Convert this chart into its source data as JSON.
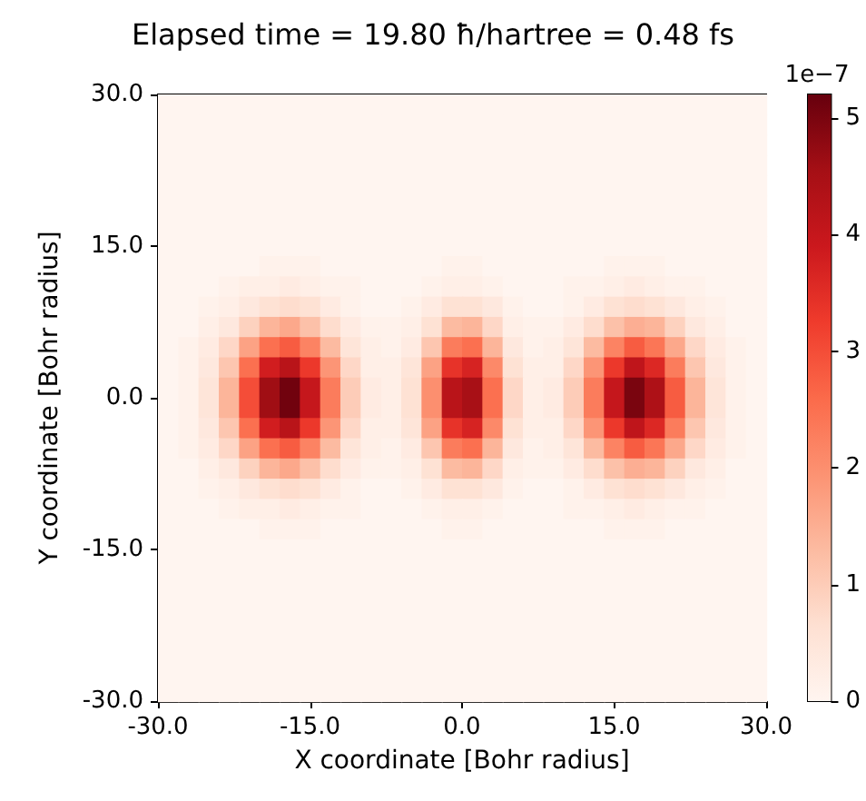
{
  "chart_data": {
    "type": "heatmap",
    "title": "Elapsed time = 19.80 ħ/hartree = 0.48 fs",
    "xlabel": "X coordinate [Bohr radius]",
    "ylabel": "Y coordinate [Bohr radius]",
    "clabel": "1e−7",
    "xlim": [
      -30,
      30
    ],
    "ylim": [
      -30,
      30
    ],
    "xticks": [
      {
        "value": -30,
        "label": "-30.0"
      },
      {
        "value": -15,
        "label": "-15.0"
      },
      {
        "value": 0,
        "label": "0.0"
      },
      {
        "value": 15,
        "label": "15.0"
      },
      {
        "value": 30,
        "label": "30.0"
      }
    ],
    "yticks": [
      {
        "value": -30,
        "label": "-30.0"
      },
      {
        "value": -15,
        "label": "-15.0"
      },
      {
        "value": 0,
        "label": "0.0"
      },
      {
        "value": 15,
        "label": "15.0"
      },
      {
        "value": 30,
        "label": "30.0"
      }
    ],
    "clim": [
      0,
      5.2
    ],
    "cticks": [
      0,
      1,
      2,
      3,
      4,
      5
    ],
    "cells": [
      [
        0,
        0,
        0,
        0,
        0,
        0,
        0,
        0,
        0,
        0,
        0,
        0,
        0,
        0,
        0,
        0,
        0,
        0,
        0,
        0,
        0,
        0,
        0,
        0,
        0,
        0,
        0,
        0,
        0,
        0
      ],
      [
        0,
        0,
        0,
        0,
        0,
        0,
        0,
        0,
        0,
        0,
        0,
        0,
        0,
        0,
        0,
        0,
        0,
        0,
        0,
        0,
        0,
        0,
        0,
        0,
        0,
        0,
        0,
        0,
        0,
        0
      ],
      [
        0,
        0,
        0,
        0,
        0,
        0,
        0,
        0,
        0,
        0,
        0,
        0,
        0,
        0,
        0,
        0,
        0,
        0,
        0,
        0,
        0,
        0,
        0,
        0,
        0,
        0,
        0,
        0,
        0,
        0
      ],
      [
        0,
        0,
        0,
        0,
        0,
        0,
        0,
        0,
        0,
        0,
        0,
        0,
        0,
        0,
        0,
        0,
        0,
        0,
        0,
        0,
        0,
        0,
        0,
        0,
        0,
        0,
        0,
        0,
        0,
        0
      ],
      [
        0,
        0,
        0,
        0,
        0,
        0,
        0,
        0,
        0,
        0,
        0,
        0,
        0,
        0,
        0,
        0,
        0,
        0,
        0,
        0,
        0,
        0,
        0,
        0,
        0,
        0,
        0,
        0,
        0,
        0
      ],
      [
        0,
        0,
        0,
        0,
        0,
        0,
        0,
        0,
        0,
        0,
        0,
        0,
        0,
        0,
        0,
        0,
        0,
        0,
        0,
        0,
        0,
        0,
        0,
        0,
        0,
        0,
        0,
        0,
        0,
        0
      ],
      [
        0,
        0,
        0,
        0,
        0,
        0,
        0,
        0,
        0,
        0,
        0,
        0,
        0,
        0,
        0,
        0,
        0,
        0,
        0,
        0,
        0,
        0,
        0,
        0,
        0,
        0,
        0,
        0,
        0,
        0
      ],
      [
        0,
        0,
        0,
        0,
        0,
        0,
        0,
        0,
        0,
        0,
        0,
        0,
        0,
        0,
        0,
        0,
        0,
        0,
        0,
        0,
        0,
        0,
        0,
        0,
        0,
        0,
        0,
        0,
        0,
        0
      ],
      [
        0,
        0,
        0,
        0,
        0,
        0.1,
        0.1,
        0.1,
        0,
        0,
        0,
        0,
        0,
        0,
        0.1,
        0.1,
        0,
        0,
        0,
        0,
        0,
        0,
        0.1,
        0.1,
        0.1,
        0,
        0,
        0,
        0,
        0
      ],
      [
        0,
        0,
        0,
        0.1,
        0.2,
        0.2,
        0.3,
        0.2,
        0.1,
        0.1,
        0,
        0,
        0,
        0.1,
        0.2,
        0.2,
        0.1,
        0,
        0,
        0,
        0.1,
        0.1,
        0.2,
        0.3,
        0.2,
        0.1,
        0.1,
        0,
        0,
        0
      ],
      [
        0,
        0,
        0.1,
        0.2,
        0.4,
        0.6,
        0.7,
        0.6,
        0.3,
        0.1,
        0,
        0,
        0.1,
        0.3,
        0.6,
        0.6,
        0.4,
        0.1,
        0,
        0,
        0.1,
        0.3,
        0.6,
        0.7,
        0.6,
        0.4,
        0.2,
        0.1,
        0,
        0
      ],
      [
        0,
        0,
        0.2,
        0.4,
        0.9,
        1.4,
        1.6,
        1.2,
        0.7,
        0.3,
        0.1,
        0.1,
        0.2,
        0.6,
        1.3,
        1.4,
        0.8,
        0.2,
        0.1,
        0.1,
        0.3,
        0.7,
        1.2,
        1.5,
        1.4,
        0.9,
        0.4,
        0.2,
        0,
        0
      ],
      [
        0,
        0.1,
        0.3,
        0.8,
        1.7,
        2.5,
        2.8,
        2.2,
        1.3,
        0.5,
        0.2,
        0.1,
        0.3,
        1.1,
        2.3,
        2.5,
        1.4,
        0.4,
        0.1,
        0.2,
        0.5,
        1.3,
        2.2,
        2.8,
        2.4,
        1.6,
        0.8,
        0.3,
        0.1,
        0
      ],
      [
        0,
        0.1,
        0.4,
        1.1,
        2.5,
        3.8,
        4.2,
        3.3,
        1.9,
        0.8,
        0.2,
        0.2,
        0.5,
        1.7,
        3.4,
        3.7,
        2.1,
        0.6,
        0.2,
        0.2,
        0.8,
        1.9,
        3.3,
        4.1,
        3.6,
        2.3,
        1.1,
        0.4,
        0.1,
        0
      ],
      [
        0,
        0.1,
        0.5,
        1.4,
        3.0,
        4.6,
        5.1,
        4.0,
        2.3,
        1.0,
        0.3,
        0.2,
        0.6,
        2.0,
        4.2,
        4.5,
        2.5,
        0.8,
        0.2,
        0.3,
        1.0,
        2.3,
        4.0,
        5.0,
        4.4,
        2.8,
        1.4,
        0.5,
        0.1,
        0
      ],
      [
        0,
        0.1,
        0.5,
        1.4,
        3.0,
        4.6,
        5.1,
        4.0,
        2.3,
        1.0,
        0.3,
        0.2,
        0.6,
        2.0,
        4.2,
        4.5,
        2.5,
        0.8,
        0.2,
        0.3,
        1.0,
        2.3,
        4.0,
        5.0,
        4.4,
        2.8,
        1.4,
        0.5,
        0.1,
        0
      ],
      [
        0,
        0.1,
        0.4,
        1.1,
        2.5,
        3.8,
        4.2,
        3.3,
        1.9,
        0.8,
        0.2,
        0.2,
        0.5,
        1.7,
        3.4,
        3.7,
        2.1,
        0.6,
        0.2,
        0.2,
        0.8,
        1.9,
        3.3,
        4.1,
        3.6,
        2.3,
        1.1,
        0.4,
        0.1,
        0
      ],
      [
        0,
        0.1,
        0.3,
        0.8,
        1.7,
        2.5,
        2.8,
        2.2,
        1.3,
        0.5,
        0.2,
        0.1,
        0.3,
        1.1,
        2.3,
        2.5,
        1.4,
        0.4,
        0.1,
        0.2,
        0.5,
        1.3,
        2.2,
        2.8,
        2.4,
        1.6,
        0.8,
        0.3,
        0.1,
        0
      ],
      [
        0,
        0,
        0.2,
        0.4,
        0.9,
        1.4,
        1.6,
        1.2,
        0.7,
        0.3,
        0.1,
        0.1,
        0.2,
        0.6,
        1.3,
        1.4,
        0.8,
        0.2,
        0.1,
        0.1,
        0.3,
        0.7,
        1.2,
        1.5,
        1.4,
        0.9,
        0.4,
        0.2,
        0,
        0
      ],
      [
        0,
        0,
        0.1,
        0.2,
        0.4,
        0.6,
        0.7,
        0.6,
        0.3,
        0.1,
        0,
        0,
        0.1,
        0.3,
        0.6,
        0.6,
        0.4,
        0.1,
        0,
        0,
        0.1,
        0.3,
        0.6,
        0.7,
        0.6,
        0.4,
        0.2,
        0.1,
        0,
        0
      ],
      [
        0,
        0,
        0,
        0.1,
        0.2,
        0.2,
        0.3,
        0.2,
        0.1,
        0.1,
        0,
        0,
        0,
        0.1,
        0.2,
        0.2,
        0.1,
        0,
        0,
        0,
        0.1,
        0.1,
        0.2,
        0.3,
        0.2,
        0.1,
        0.1,
        0,
        0,
        0
      ],
      [
        0,
        0,
        0,
        0,
        0,
        0.1,
        0.1,
        0.1,
        0,
        0,
        0,
        0,
        0,
        0,
        0.1,
        0.1,
        0,
        0,
        0,
        0,
        0,
        0,
        0.1,
        0.1,
        0.1,
        0,
        0,
        0,
        0,
        0
      ],
      [
        0,
        0,
        0,
        0,
        0,
        0,
        0,
        0,
        0,
        0,
        0,
        0,
        0,
        0,
        0,
        0,
        0,
        0,
        0,
        0,
        0,
        0,
        0,
        0,
        0,
        0,
        0,
        0,
        0,
        0
      ],
      [
        0,
        0,
        0,
        0,
        0,
        0,
        0,
        0,
        0,
        0,
        0,
        0,
        0,
        0,
        0,
        0,
        0,
        0,
        0,
        0,
        0,
        0,
        0,
        0,
        0,
        0,
        0,
        0,
        0,
        0
      ],
      [
        0,
        0,
        0,
        0,
        0,
        0,
        0,
        0,
        0,
        0,
        0,
        0,
        0,
        0,
        0,
        0,
        0,
        0,
        0,
        0,
        0,
        0,
        0,
        0,
        0,
        0,
        0,
        0,
        0,
        0
      ],
      [
        0,
        0,
        0,
        0,
        0,
        0,
        0,
        0,
        0,
        0,
        0,
        0,
        0,
        0,
        0,
        0,
        0,
        0,
        0,
        0,
        0,
        0,
        0,
        0,
        0,
        0,
        0,
        0,
        0,
        0
      ],
      [
        0,
        0,
        0,
        0,
        0,
        0,
        0,
        0,
        0,
        0,
        0,
        0,
        0,
        0,
        0,
        0,
        0,
        0,
        0,
        0,
        0,
        0,
        0,
        0,
        0,
        0,
        0,
        0,
        0,
        0
      ],
      [
        0,
        0,
        0,
        0,
        0,
        0,
        0,
        0,
        0,
        0,
        0,
        0,
        0,
        0,
        0,
        0,
        0,
        0,
        0,
        0,
        0,
        0,
        0,
        0,
        0,
        0,
        0,
        0,
        0,
        0
      ],
      [
        0,
        0,
        0,
        0,
        0,
        0,
        0,
        0,
        0,
        0,
        0,
        0,
        0,
        0,
        0,
        0,
        0,
        0,
        0,
        0,
        0,
        0,
        0,
        0,
        0,
        0,
        0,
        0,
        0,
        0
      ],
      [
        0,
        0,
        0,
        0,
        0,
        0,
        0,
        0,
        0,
        0,
        0,
        0,
        0,
        0,
        0,
        0,
        0,
        0,
        0,
        0,
        0,
        0,
        0,
        0,
        0,
        0,
        0,
        0,
        0,
        0
      ]
    ]
  }
}
